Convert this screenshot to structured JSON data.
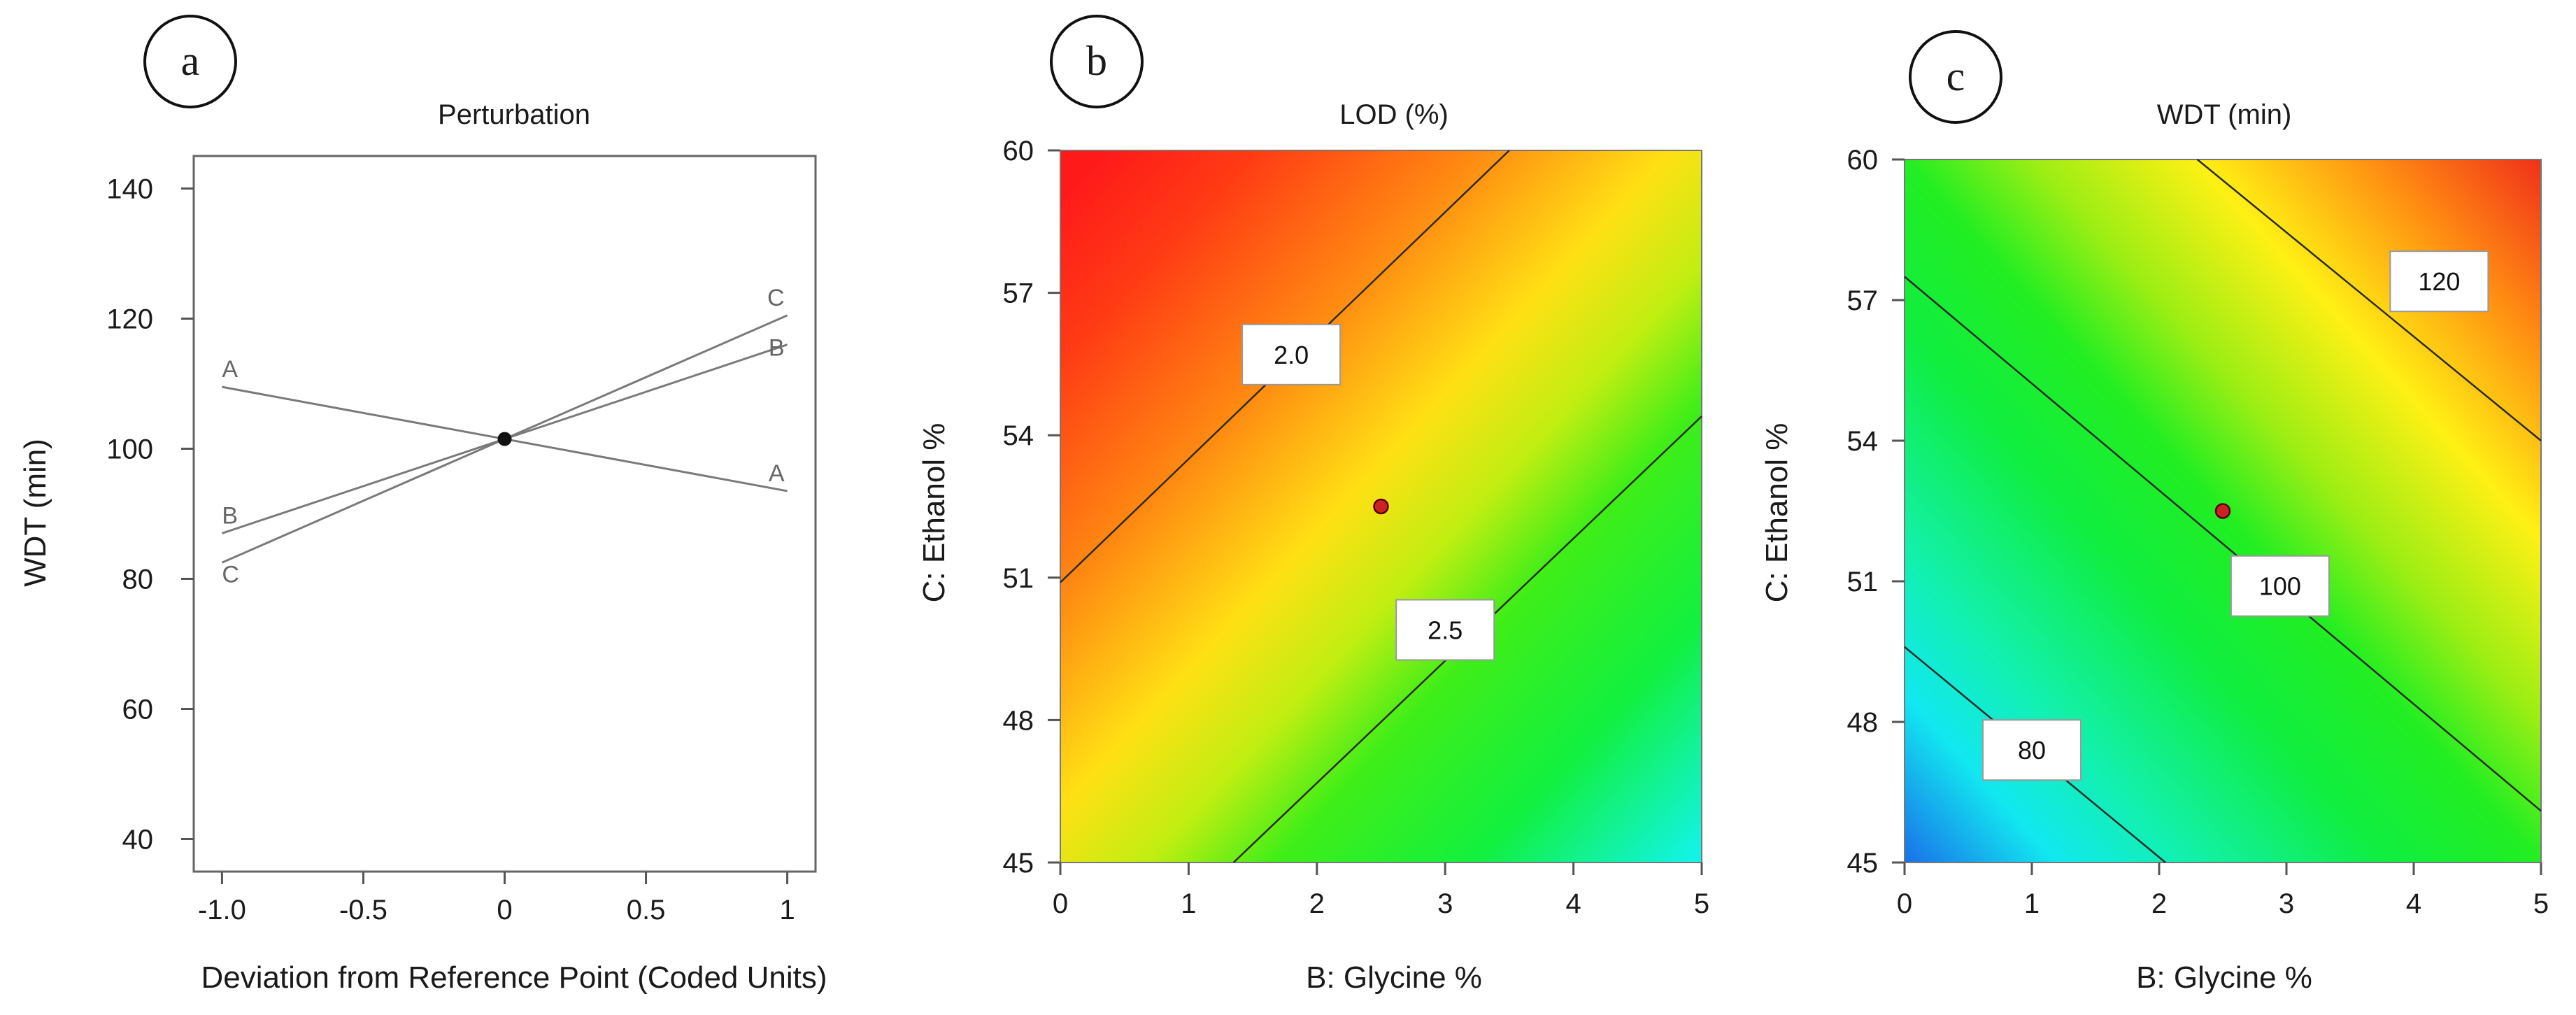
{
  "chart_data": [
    {
      "panel": "a",
      "type": "line",
      "title": "Perturbation",
      "xlabel": "Deviation from Reference Point (Coded Units)",
      "ylabel": "WDT (min)",
      "xlim": [
        -1.1,
        1.1
      ],
      "ylim": [
        35,
        145
      ],
      "x_ticks": [
        -1.0,
        -0.5,
        0,
        0.5,
        1
      ],
      "x_tick_labels": [
        "-1.0",
        "-0.5",
        "0",
        "0.5",
        "1"
      ],
      "y_ticks": [
        40,
        60,
        80,
        100,
        120,
        140
      ],
      "y_tick_labels": [
        "40",
        "60",
        "80",
        "100",
        "120",
        "140"
      ],
      "reference_point": {
        "x": 0,
        "y": 101.5
      },
      "series": [
        {
          "name": "A",
          "x": [
            -1,
            0,
            1
          ],
          "y": [
            109.5,
            101.5,
            93.5
          ]
        },
        {
          "name": "B",
          "x": [
            -1,
            0,
            1
          ],
          "y": [
            87,
            101.5,
            116
          ]
        },
        {
          "name": "C",
          "x": [
            -1,
            0,
            1
          ],
          "y": [
            82.5,
            101.5,
            120.5
          ]
        }
      ]
    },
    {
      "panel": "b",
      "type": "heatmap",
      "title": "LOD (%)",
      "xlabel": "B: Glycine %",
      "ylabel": "C: Ethanol %",
      "xlim": [
        0,
        5
      ],
      "ylim": [
        45,
        60
      ],
      "x_ticks": [
        0,
        1,
        2,
        3,
        4,
        5
      ],
      "x_tick_labels": [
        "0",
        "1",
        "2",
        "3",
        "4",
        "5"
      ],
      "y_ticks": [
        45,
        48,
        51,
        54,
        57,
        60
      ],
      "y_tick_labels": [
        "45",
        "48",
        "51",
        "54",
        "57",
        "60"
      ],
      "contours": [
        {
          "label": "2.0",
          "points": [
            [
              0,
              50.9
            ],
            [
              3.5,
              60
            ]
          ]
        },
        {
          "label": "2.5",
          "points": [
            [
              1.35,
              45
            ],
            [
              5,
              54.4
            ]
          ]
        }
      ],
      "design_point": {
        "x": 2.5,
        "y": 52.5
      }
    },
    {
      "panel": "c",
      "type": "heatmap",
      "title": "WDT (min)",
      "xlabel": "B: Glycine %",
      "ylabel": "C: Ethanol %",
      "xlim": [
        0,
        5
      ],
      "ylim": [
        45,
        60
      ],
      "x_ticks": [
        0,
        1,
        2,
        3,
        4,
        5
      ],
      "x_tick_labels": [
        "0",
        "1",
        "2",
        "3",
        "4",
        "5"
      ],
      "y_ticks": [
        45,
        48,
        51,
        54,
        57,
        60
      ],
      "y_tick_labels": [
        "45",
        "48",
        "51",
        "54",
        "57",
        "60"
      ],
      "contours": [
        {
          "label": "80",
          "points": [
            [
              0,
              49.6
            ],
            [
              2.05,
              45
            ]
          ]
        },
        {
          "label": "100",
          "points": [
            [
              0,
              57.5
            ],
            [
              5,
              46.1
            ]
          ]
        },
        {
          "label": "120",
          "points": [
            [
              2.3,
              60
            ],
            [
              5,
              54
            ]
          ]
        }
      ],
      "design_point": {
        "x": 2.5,
        "y": 52.5
      }
    }
  ],
  "panels": {
    "a": {
      "letter": "a"
    },
    "b": {
      "letter": "b"
    },
    "c": {
      "letter": "c"
    }
  },
  "colors": {
    "line": "#7a7a7a",
    "axis": "#555555",
    "contour": "#2b2b2b",
    "point": "#cc2222"
  }
}
